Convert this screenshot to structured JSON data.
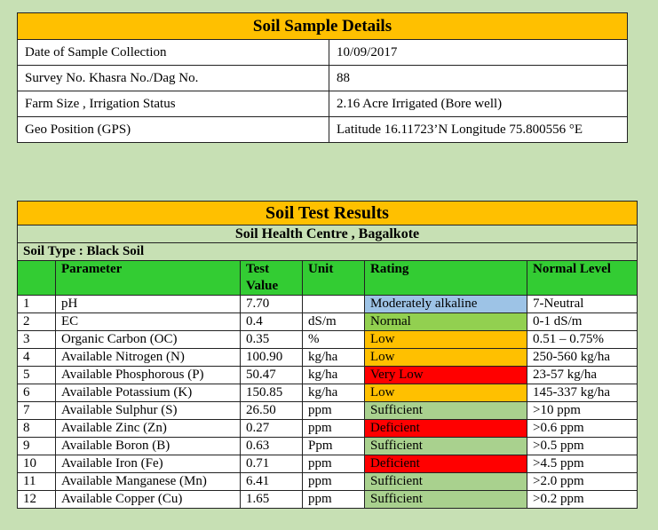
{
  "sample": {
    "title": "Soil Sample Details",
    "rows": [
      {
        "label": "Date of Sample Collection",
        "value": "10/09/2017"
      },
      {
        "label": "Survey No. Khasra No./Dag No.",
        "value": "88"
      },
      {
        "label": "Farm Size , Irrigation Status",
        "value": "2.16 Acre Irrigated (Bore well)"
      },
      {
        "label": "Geo Position (GPS)",
        "value": "Latitude 16.11723’N   Longitude 75.800556 °E"
      }
    ]
  },
  "results": {
    "title": "Soil Test Results",
    "centre": "Soil Health Centre , Bagalkote",
    "soil_type": "Soil Type : Black Soil",
    "headers": {
      "no": "",
      "parameter": "Parameter",
      "value": "Test Value",
      "unit": "Unit",
      "rating": "Rating",
      "normal": "Normal Level"
    },
    "rows": [
      {
        "no": "1",
        "parameter": "pH",
        "value": "7.70",
        "unit": "",
        "rating": "Moderately alkaline",
        "rating_color": "#9dc3e6",
        "normal": "7-Neutral"
      },
      {
        "no": "2",
        "parameter": "EC",
        "value": "0.4",
        "unit": "dS/m",
        "rating": "Normal",
        "rating_color": "#92d050",
        "normal": "0-1 dS/m"
      },
      {
        "no": "3",
        "parameter": "Organic Carbon (OC)",
        "value": "0.35",
        "unit": "%",
        "rating": "Low",
        "rating_color": "#ffc000",
        "normal": "0.51 – 0.75%"
      },
      {
        "no": "4",
        "parameter": "Available Nitrogen (N)",
        "value": "100.90",
        "unit": "kg/ha",
        "rating": "Low",
        "rating_color": "#ffc000",
        "normal": "250-560 kg/ha"
      },
      {
        "no": "5",
        "parameter": "Available Phosphorous (P)",
        "value": "50.47",
        "unit": "kg/ha",
        "rating": "Very Low",
        "rating_color": "#ff0000",
        "normal": "23-57 kg/ha"
      },
      {
        "no": "6",
        "parameter": "Available Potassium (K)",
        "value": "150.85",
        "unit": "kg/ha",
        "rating": "Low",
        "rating_color": "#ffc000",
        "normal": "145-337 kg/ha"
      },
      {
        "no": "7",
        "parameter": "Available Sulphur (S)",
        "value": "26.50",
        "unit": "ppm",
        "rating": "Sufficient",
        "rating_color": "#a9d18e",
        "normal": ">10 ppm"
      },
      {
        "no": "8",
        "parameter": "Available Zinc (Zn)",
        "value": "0.27",
        "unit": "ppm",
        "rating": "Deficient",
        "rating_color": "#ff0000",
        "normal": ">0.6 ppm"
      },
      {
        "no": "9",
        "parameter": "Available Boron (B)",
        "value": "0.63",
        "unit": "Ppm",
        "rating": "Sufficient",
        "rating_color": "#a9d18e",
        "normal": ">0.5 ppm"
      },
      {
        "no": "10",
        "parameter": "Available Iron (Fe)",
        "value": "0.71",
        "unit": "ppm",
        "rating": "Deficient",
        "rating_color": "#ff0000",
        "normal": ">4.5 ppm"
      },
      {
        "no": "11",
        "parameter": "Available Manganese (Mn)",
        "value": "6.41",
        "unit": "ppm",
        "rating": "Sufficient",
        "rating_color": "#a9d18e",
        "normal": ">2.0 ppm"
      },
      {
        "no": "12",
        "parameter": "Available Copper (Cu)",
        "value": "1.65",
        "unit": "ppm",
        "rating": "Sufficient",
        "rating_color": "#a9d18e",
        "normal": ">0.2 ppm"
      }
    ]
  }
}
